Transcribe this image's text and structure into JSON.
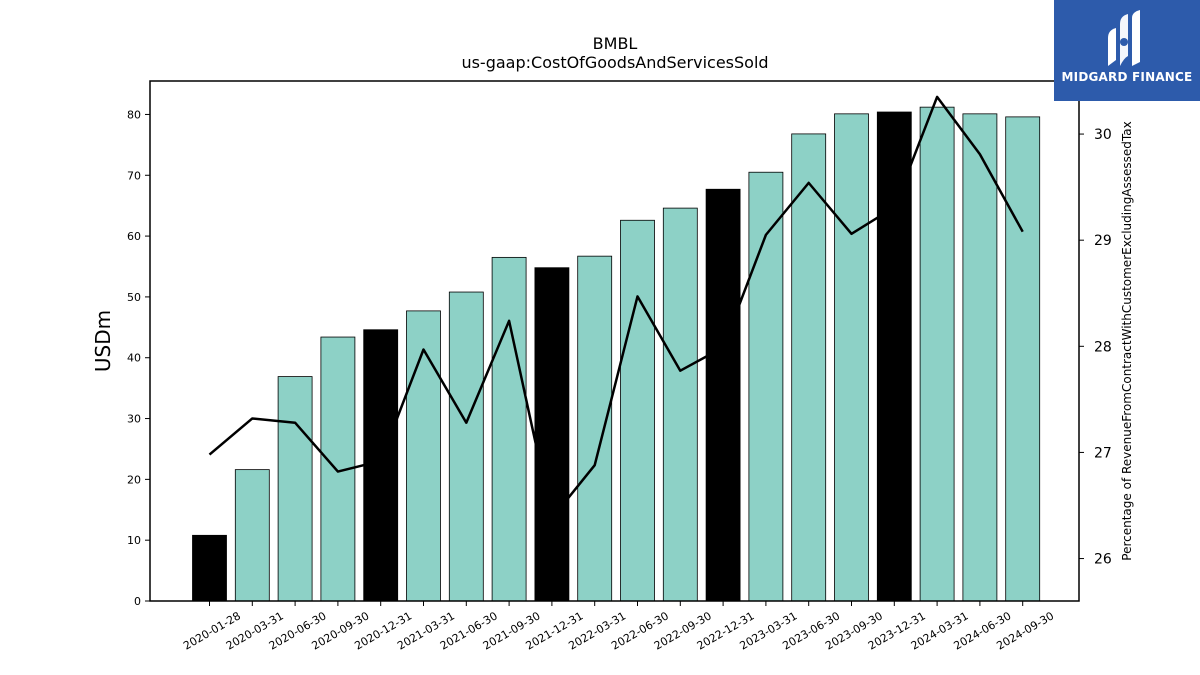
{
  "chart_data": {
    "type": "bar",
    "title": "BMBL",
    "subtitle": "us-gaap:CostOfGoodsAndServicesSold",
    "xlabel": "",
    "ylabel": "USDm",
    "y2label": "Percentage of RevenueFromContractWithCustomerExcludingAssessedTax",
    "ylim": [
      0,
      85.5
    ],
    "y2lim": [
      25.6,
      30.5
    ],
    "yticks": [
      "0",
      "10",
      "20",
      "30",
      "40",
      "50",
      "60",
      "70",
      "80"
    ],
    "y2ticks": [
      "26",
      "27",
      "28",
      "29",
      "30"
    ],
    "grid": false,
    "categories": [
      "2020-01-28",
      "2020-03-31",
      "2020-06-30",
      "2020-09-30",
      "2020-12-31",
      "2021-03-31",
      "2021-06-30",
      "2021-09-30",
      "2021-12-31",
      "2022-03-31",
      "2022-06-30",
      "2022-09-30",
      "2022-12-31",
      "2023-03-31",
      "2023-06-30",
      "2023-09-30",
      "2023-12-31",
      "2024-03-31",
      "2024-06-30",
      "2024-09-30"
    ],
    "series": [
      {
        "kind": "bar",
        "axis": "left",
        "values": [
          10.8,
          21.6,
          36.9,
          43.4,
          44.6,
          47.7,
          50.8,
          56.5,
          54.8,
          56.7,
          62.6,
          64.6,
          67.7,
          70.5,
          76.8,
          80.1,
          80.4,
          81.2,
          80.1,
          79.6
        ]
      },
      {
        "kind": "line",
        "axis": "right",
        "values": [
          26.98,
          27.32,
          27.28,
          26.82,
          26.92,
          27.97,
          27.28,
          28.24,
          26.38,
          26.88,
          28.47,
          27.77,
          27.99,
          29.05,
          29.54,
          29.06,
          29.31,
          30.35,
          29.81,
          29.08
        ]
      }
    ],
    "bar_colors": {
      "annual": "#000000",
      "quarterly": "#8dd1c6"
    },
    "annual_categories": [
      "2020-01-28",
      "2020-12-31",
      "2021-12-31",
      "2022-12-31",
      "2023-12-31"
    ],
    "line_color": "#000000"
  },
  "logo": {
    "text": "MIDGARD FINANCE",
    "bg_color": "#2d5bab"
  }
}
